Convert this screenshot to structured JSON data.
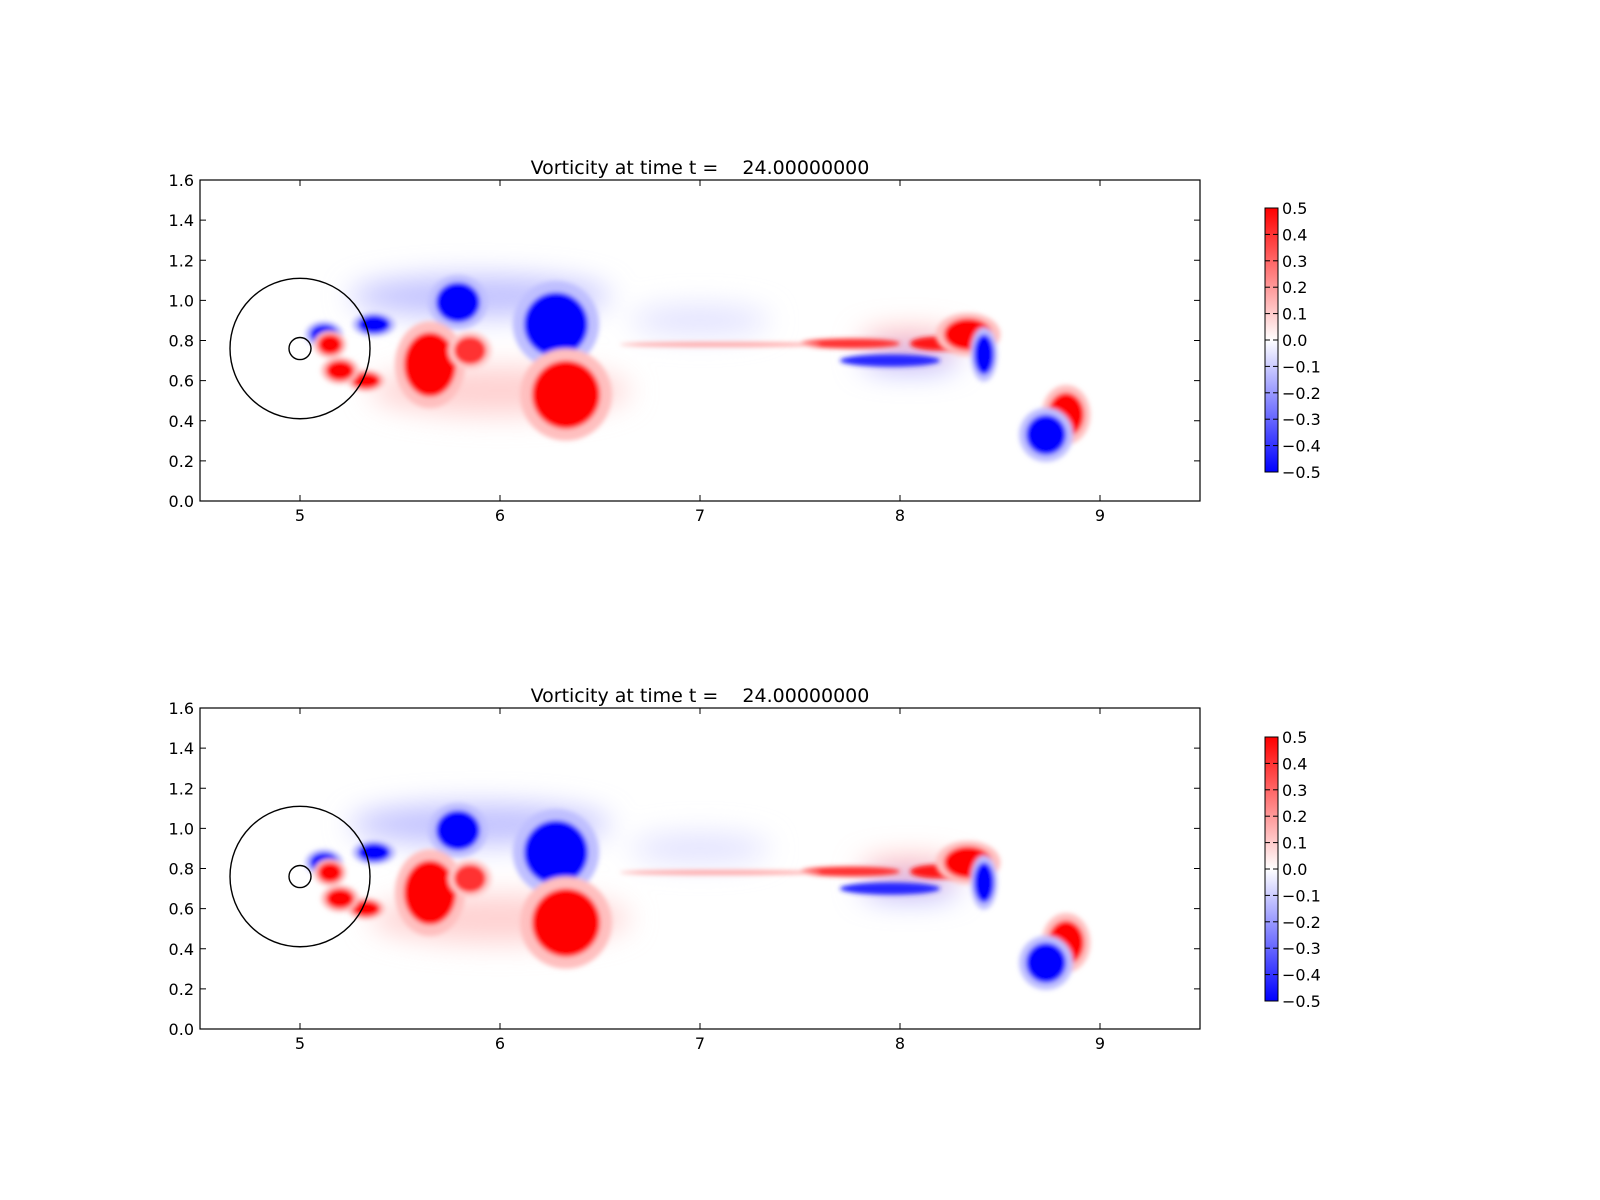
{
  "chart_data": [
    {
      "type": "heatmap",
      "title": "Vorticity at time t =    24.00000000",
      "xlabel": "",
      "ylabel": "",
      "xlim": [
        4.5,
        9.5
      ],
      "ylim": [
        0.0,
        1.6
      ],
      "xticks": [
        "5",
        "6",
        "7",
        "8",
        "9"
      ],
      "yticks": [
        "0.0",
        "0.2",
        "0.4",
        "0.6",
        "0.8",
        "1.0",
        "1.2",
        "1.4",
        "1.6"
      ],
      "colormap": {
        "name": "bwr",
        "low_color": "#0000ff",
        "mid_color": "#ffffff",
        "high_color": "#ff0000"
      },
      "clim": [
        -0.5,
        0.5
      ],
      "colorbar_ticks": [
        "0.5",
        "0.4",
        "0.3",
        "0.2",
        "0.1",
        "0.0",
        "−0.1",
        "−0.2",
        "−0.3",
        "−0.4",
        "−0.5"
      ],
      "circles": [
        {
          "cx": 5.0,
          "cy": 0.76,
          "r": 0.35
        },
        {
          "cx": 5.0,
          "cy": 0.76,
          "r": 0.055
        }
      ],
      "vortices": [
        {
          "x": 6.28,
          "y": 0.88,
          "sign": -1,
          "strength": 0.5
        },
        {
          "x": 6.33,
          "y": 0.53,
          "sign": 1,
          "strength": 0.5
        },
        {
          "x": 5.79,
          "y": 0.99,
          "sign": -1,
          "strength": 0.5
        },
        {
          "x": 5.65,
          "y": 0.68,
          "sign": 1,
          "strength": 0.5
        },
        {
          "x": 5.85,
          "y": 0.75,
          "sign": 1,
          "strength": 0.4
        },
        {
          "x": 5.37,
          "y": 0.88,
          "sign": -1,
          "strength": 0.5
        },
        {
          "x": 5.33,
          "y": 0.6,
          "sign": 1,
          "strength": 0.5
        },
        {
          "x": 5.2,
          "y": 0.65,
          "sign": 1,
          "strength": 0.5
        },
        {
          "x": 5.12,
          "y": 0.83,
          "sign": -1,
          "strength": 0.5
        },
        {
          "x": 5.15,
          "y": 0.78,
          "sign": 1,
          "strength": 0.5
        },
        {
          "x": 8.34,
          "y": 0.83,
          "sign": 1,
          "strength": 0.5
        },
        {
          "x": 8.42,
          "y": 0.73,
          "sign": -1,
          "strength": 0.5
        },
        {
          "x": 8.83,
          "y": 0.43,
          "sign": 1,
          "strength": 0.5
        },
        {
          "x": 8.73,
          "y": 0.33,
          "sign": -1,
          "strength": 0.5
        }
      ]
    },
    {
      "type": "heatmap",
      "title": "Vorticity at time t =    24.00000000",
      "xlabel": "",
      "ylabel": "",
      "xlim": [
        4.5,
        9.5
      ],
      "ylim": [
        0.0,
        1.6
      ],
      "xticks": [
        "5",
        "6",
        "7",
        "8",
        "9"
      ],
      "yticks": [
        "0.0",
        "0.2",
        "0.4",
        "0.6",
        "0.8",
        "1.0",
        "1.2",
        "1.4",
        "1.6"
      ],
      "colormap": {
        "name": "bwr",
        "low_color": "#0000ff",
        "mid_color": "#ffffff",
        "high_color": "#ff0000"
      },
      "clim": [
        -0.5,
        0.5
      ],
      "colorbar_ticks": [
        "0.5",
        "0.4",
        "0.3",
        "0.2",
        "0.1",
        "0.0",
        "−0.1",
        "−0.2",
        "−0.3",
        "−0.4",
        "−0.5"
      ],
      "circles": [
        {
          "cx": 5.0,
          "cy": 0.76,
          "r": 0.35
        },
        {
          "cx": 5.0,
          "cy": 0.76,
          "r": 0.055
        }
      ],
      "vortices": [
        {
          "x": 6.28,
          "y": 0.88,
          "sign": -1,
          "strength": 0.5
        },
        {
          "x": 6.33,
          "y": 0.53,
          "sign": 1,
          "strength": 0.5
        },
        {
          "x": 5.79,
          "y": 0.99,
          "sign": -1,
          "strength": 0.5
        },
        {
          "x": 5.65,
          "y": 0.68,
          "sign": 1,
          "strength": 0.5
        },
        {
          "x": 5.85,
          "y": 0.75,
          "sign": 1,
          "strength": 0.4
        },
        {
          "x": 5.37,
          "y": 0.88,
          "sign": -1,
          "strength": 0.5
        },
        {
          "x": 5.33,
          "y": 0.6,
          "sign": 1,
          "strength": 0.5
        },
        {
          "x": 5.2,
          "y": 0.65,
          "sign": 1,
          "strength": 0.5
        },
        {
          "x": 5.12,
          "y": 0.83,
          "sign": -1,
          "strength": 0.5
        },
        {
          "x": 5.15,
          "y": 0.78,
          "sign": 1,
          "strength": 0.5
        },
        {
          "x": 8.34,
          "y": 0.83,
          "sign": 1,
          "strength": 0.5
        },
        {
          "x": 8.42,
          "y": 0.73,
          "sign": -1,
          "strength": 0.5
        },
        {
          "x": 8.83,
          "y": 0.43,
          "sign": 1,
          "strength": 0.5
        },
        {
          "x": 8.73,
          "y": 0.33,
          "sign": -1,
          "strength": 0.5
        }
      ]
    }
  ]
}
